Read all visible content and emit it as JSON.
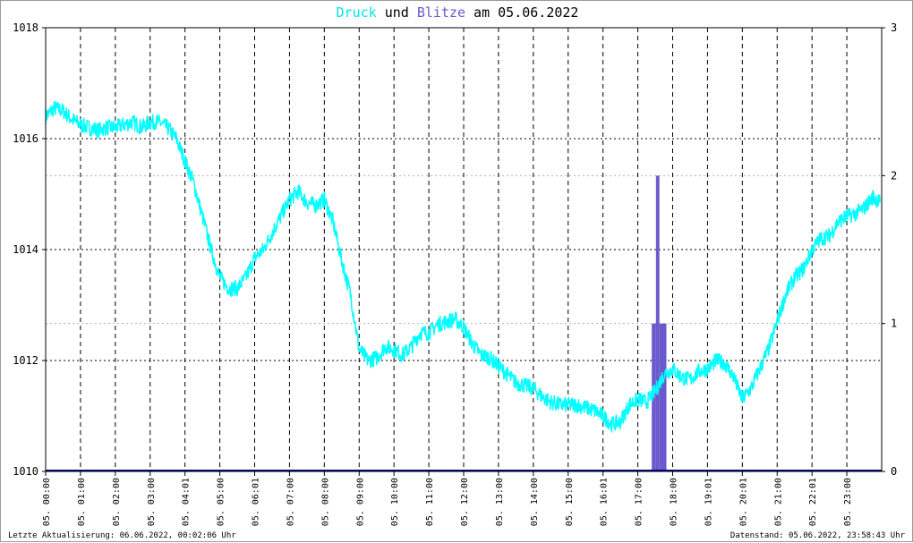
{
  "title": {
    "druck": "Druck",
    "und": " und ",
    "blitze": "Blitze",
    "rest": " am 05.06.2022"
  },
  "footer": {
    "left": "Letzte Aktualisierung: 06.06.2022, 00:02:06 Uhr",
    "right": "Datenstand: 05.06.2022, 23:58:43 Uhr"
  },
  "colors": {
    "druck": "#00ffff",
    "blitze": "#6a5acd",
    "baseline": "#00008b"
  },
  "chart_data": {
    "type": "line",
    "title": "Druck und Blitze am 05.06.2022",
    "x_tick_labels": [
      "05. 00:00",
      "05. 01:00",
      "05. 02:00",
      "05. 03:00",
      "05. 04:01",
      "05. 05:00",
      "05. 06:01",
      "05. 07:00",
      "05. 08:00",
      "05. 09:00",
      "05. 10:00",
      "05. 11:00",
      "05. 12:00",
      "05. 13:00",
      "05. 14:00",
      "05. 15:00",
      "05. 16:01",
      "05. 17:00",
      "05. 18:00",
      "05. 19:01",
      "05. 20:01",
      "05. 21:00",
      "05. 22:01",
      "05. 23:00"
    ],
    "y_left": {
      "ticks": [
        1010,
        1012,
        1014,
        1016,
        1018
      ],
      "range": [
        1010,
        1018
      ]
    },
    "y_right": {
      "ticks": [
        0,
        1,
        2,
        3
      ],
      "range": [
        0,
        3
      ]
    },
    "grid": true,
    "series": [
      {
        "name": "Druck",
        "axis": "left",
        "x_hours": [
          0,
          0.25,
          0.5,
          0.75,
          1,
          1.25,
          1.5,
          1.75,
          2,
          2.25,
          2.5,
          2.75,
          3,
          3.25,
          3.5,
          3.75,
          4,
          4.25,
          4.5,
          4.75,
          5,
          5.25,
          5.5,
          5.75,
          6,
          6.25,
          6.5,
          6.75,
          7,
          7.25,
          7.5,
          7.75,
          8,
          8.25,
          8.5,
          8.75,
          9,
          9.25,
          9.5,
          9.75,
          10,
          10.25,
          10.5,
          10.75,
          11,
          11.25,
          11.5,
          11.75,
          12,
          12.25,
          12.5,
          12.75,
          13,
          13.25,
          13.5,
          13.75,
          14,
          14.25,
          14.5,
          14.75,
          15,
          15.25,
          15.5,
          15.75,
          16,
          16.25,
          16.5,
          16.75,
          17,
          17.25,
          17.5,
          17.75,
          18,
          18.25,
          18.5,
          18.75,
          19,
          19.25,
          19.5,
          19.75,
          20,
          20.25,
          20.5,
          20.75,
          21,
          21.25,
          21.5,
          21.75,
          22,
          22.25,
          22.5,
          22.75,
          23,
          23.25,
          23.5,
          23.75,
          23.95
        ],
        "values": [
          1016.4,
          1016.55,
          1016.5,
          1016.35,
          1016.25,
          1016.2,
          1016.15,
          1016.2,
          1016.2,
          1016.25,
          1016.3,
          1016.2,
          1016.3,
          1016.3,
          1016.2,
          1016.0,
          1015.6,
          1015.2,
          1014.6,
          1014.0,
          1013.5,
          1013.3,
          1013.3,
          1013.5,
          1013.85,
          1014.0,
          1014.3,
          1014.6,
          1014.9,
          1015.05,
          1014.85,
          1014.8,
          1014.9,
          1014.5,
          1013.8,
          1013.2,
          1012.2,
          1012.0,
          1012.05,
          1012.25,
          1012.2,
          1012.1,
          1012.25,
          1012.5,
          1012.5,
          1012.65,
          1012.7,
          1012.75,
          1012.6,
          1012.3,
          1012.1,
          1012.05,
          1011.9,
          1011.75,
          1011.6,
          1011.55,
          1011.5,
          1011.35,
          1011.25,
          1011.2,
          1011.2,
          1011.2,
          1011.15,
          1011.1,
          1011.0,
          1010.85,
          1010.9,
          1011.2,
          1011.3,
          1011.25,
          1011.45,
          1011.75,
          1011.85,
          1011.7,
          1011.65,
          1011.8,
          1011.85,
          1012.0,
          1011.95,
          1011.7,
          1011.3,
          1011.5,
          1011.85,
          1012.2,
          1012.7,
          1013.2,
          1013.5,
          1013.65,
          1014.0,
          1014.2,
          1014.25,
          1014.5,
          1014.6,
          1014.65,
          1014.75,
          1014.95,
          1014.85
        ]
      },
      {
        "name": "Blitze",
        "axis": "right",
        "bars": [
          {
            "from_hour": 17.4,
            "to_hour": 17.52,
            "value": 1
          },
          {
            "from_hour": 17.52,
            "to_hour": 17.62,
            "value": 2
          },
          {
            "from_hour": 17.62,
            "to_hour": 17.82,
            "value": 1
          }
        ]
      }
    ]
  }
}
